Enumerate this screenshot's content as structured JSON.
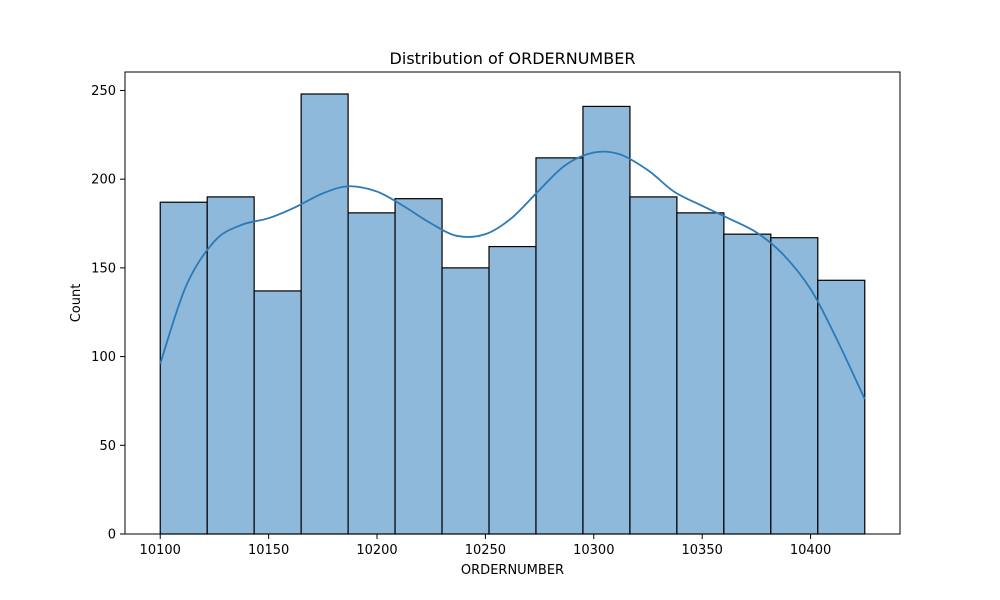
{
  "chart_data": {
    "type": "bar",
    "subtype": "histogram",
    "title": "Distribution of ORDERNUMBER",
    "xlabel": "ORDERNUMBER",
    "ylabel": "Count",
    "xlim": [
      10083.75,
      10441.25
    ],
    "ylim": [
      0,
      260.4
    ],
    "xticks": [
      10100,
      10150,
      10200,
      10250,
      10300,
      10350,
      10400
    ],
    "yticks": [
      0,
      50,
      100,
      150,
      200,
      250
    ],
    "grid": false,
    "legend": "none",
    "bar_color": "#8fb9da",
    "edge_color": "#000000",
    "curve_color": "#2a7ab8",
    "bins": [
      {
        "x0": 10100.0,
        "x1": 10121.67,
        "count": 187
      },
      {
        "x0": 10121.67,
        "x1": 10143.33,
        "count": 190
      },
      {
        "x0": 10143.33,
        "x1": 10165.0,
        "count": 137
      },
      {
        "x0": 10165.0,
        "x1": 10186.67,
        "count": 248
      },
      {
        "x0": 10186.67,
        "x1": 10208.33,
        "count": 181
      },
      {
        "x0": 10208.33,
        "x1": 10230.0,
        "count": 189
      },
      {
        "x0": 10230.0,
        "x1": 10251.67,
        "count": 150
      },
      {
        "x0": 10251.67,
        "x1": 10273.33,
        "count": 162
      },
      {
        "x0": 10273.33,
        "x1": 10295.0,
        "count": 212
      },
      {
        "x0": 10295.0,
        "x1": 10316.67,
        "count": 241
      },
      {
        "x0": 10316.67,
        "x1": 10338.33,
        "count": 190
      },
      {
        "x0": 10338.33,
        "x1": 10360.0,
        "count": 181
      },
      {
        "x0": 10360.0,
        "x1": 10381.67,
        "count": 169
      },
      {
        "x0": 10381.67,
        "x1": 10403.33,
        "count": 167
      },
      {
        "x0": 10403.33,
        "x1": 10425.0,
        "count": 143
      }
    ],
    "kde": {
      "x": [
        10100,
        10112,
        10125,
        10137,
        10150,
        10162,
        10175,
        10187,
        10200,
        10212,
        10225,
        10237,
        10250,
        10262,
        10275,
        10287,
        10300,
        10312,
        10325,
        10337,
        10350,
        10362,
        10375,
        10387,
        10400,
        10412,
        10425
      ],
      "y": [
        96,
        140,
        165,
        174,
        178,
        184,
        192,
        196,
        193,
        185,
        175,
        168,
        169,
        178,
        194,
        208,
        215,
        214,
        205,
        193,
        185,
        178,
        170,
        158,
        138,
        110,
        76
      ]
    }
  }
}
